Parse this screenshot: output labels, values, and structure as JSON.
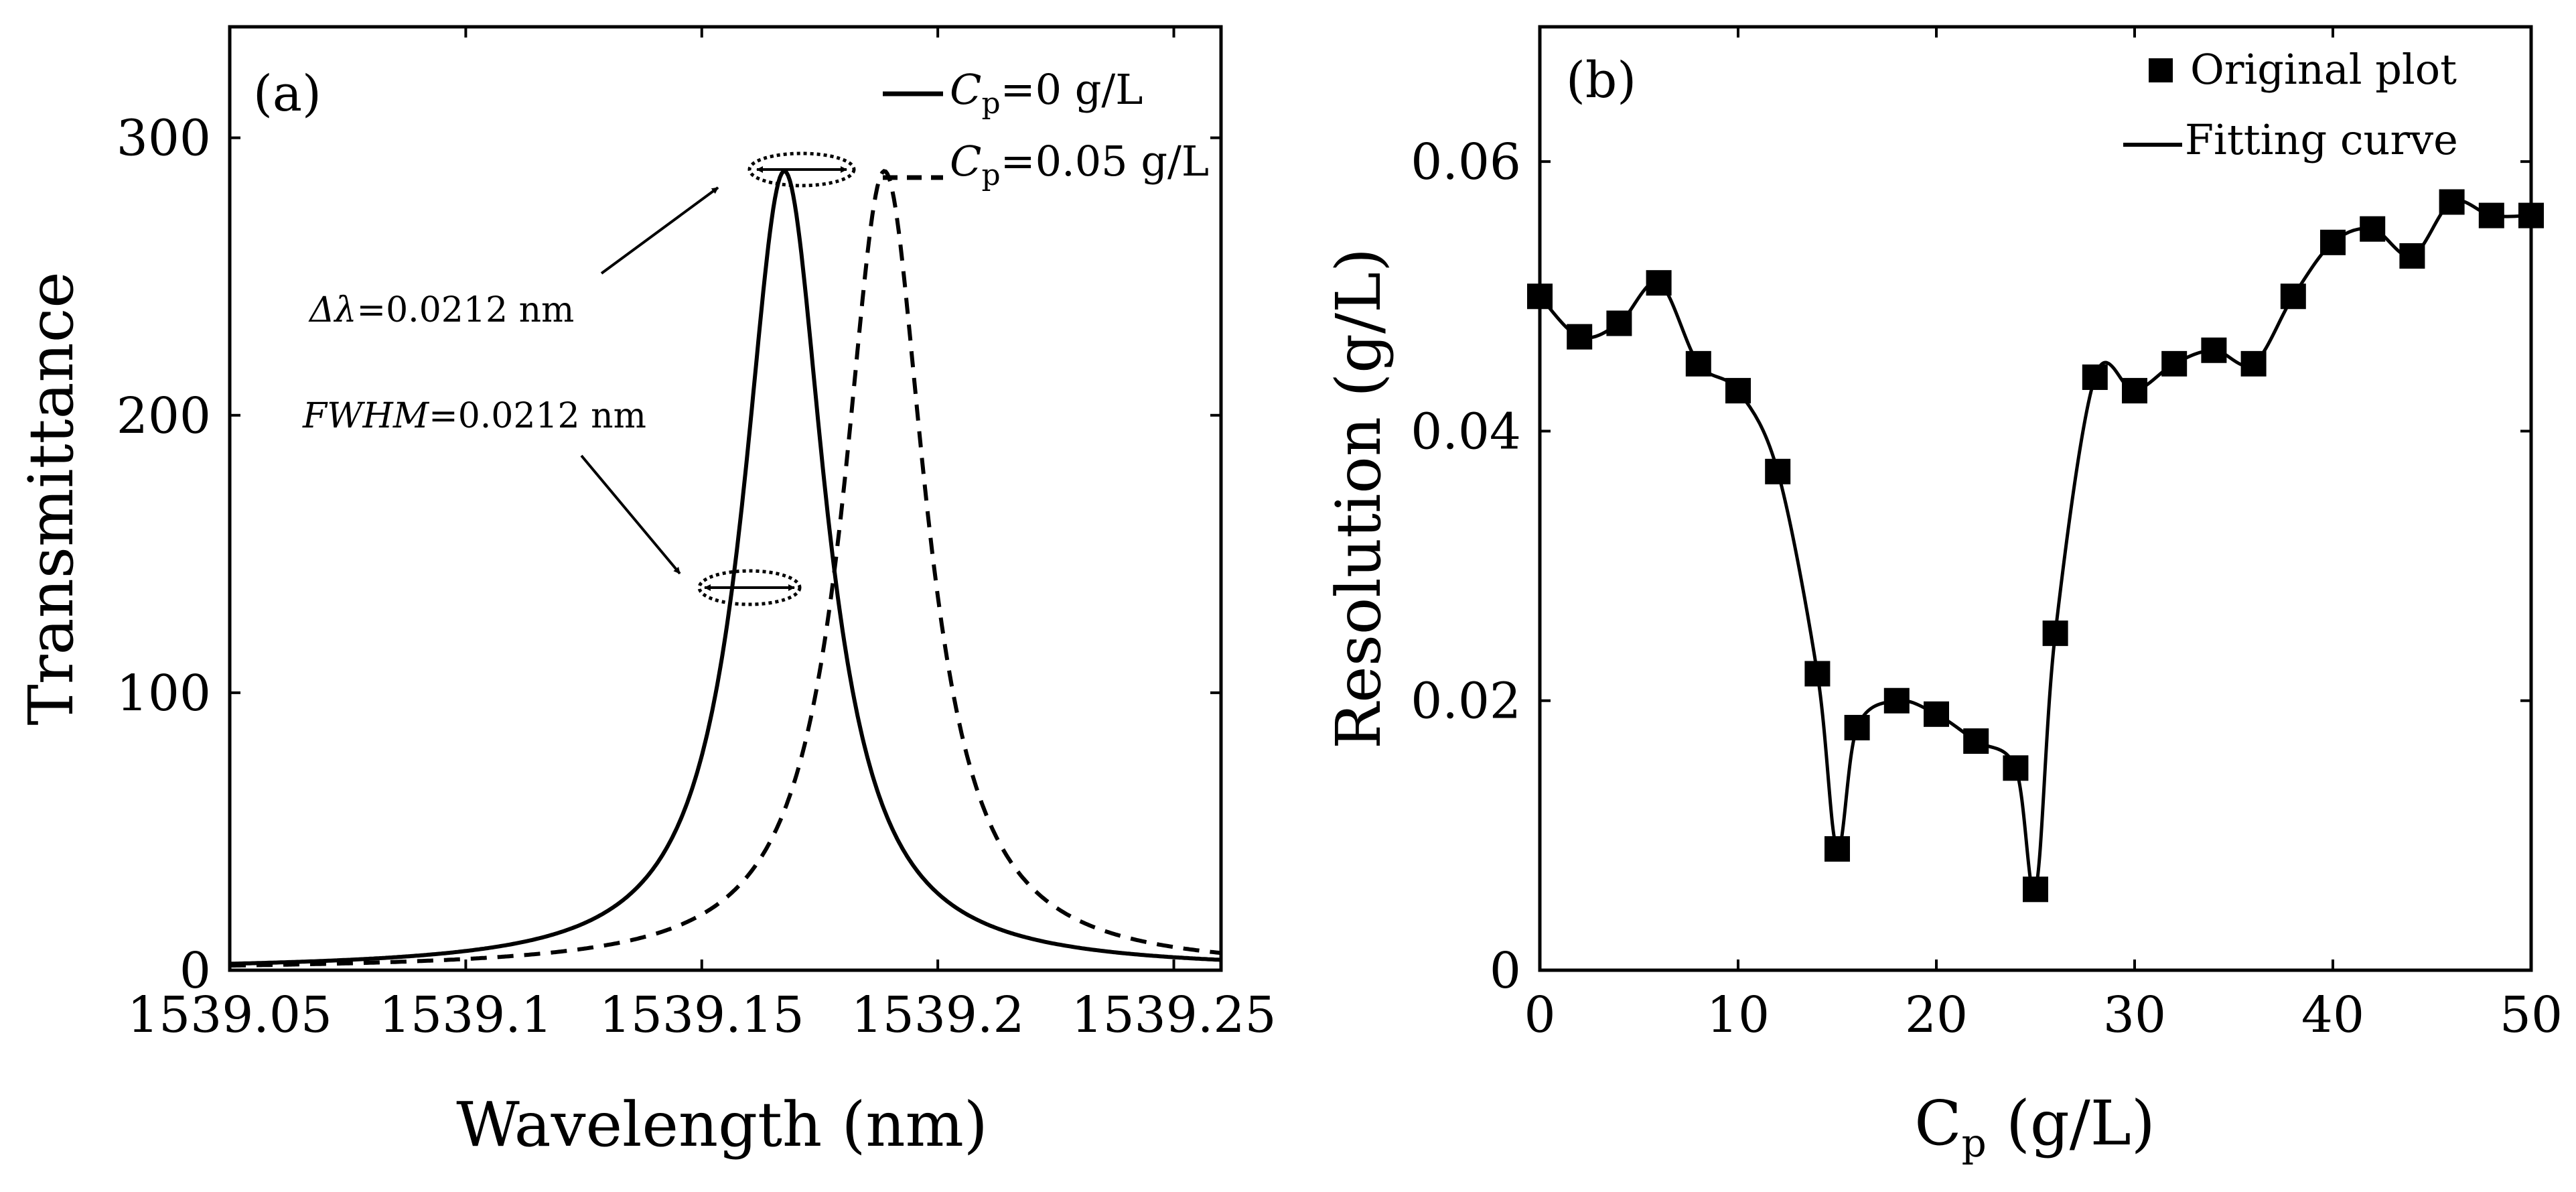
{
  "chart_data": [
    {
      "type": "line",
      "panel_label": "(a)",
      "xlabel": "Wavelength (nm)",
      "ylabel": "Transmittance",
      "xlim": [
        1539.05,
        1539.26
      ],
      "ylim": [
        0,
        340
      ],
      "xticks": [
        "1539.05",
        "1539.1",
        "1539.15",
        "1539.2",
        "1539.25"
      ],
      "yticks": [
        "0",
        "100",
        "200",
        "300"
      ],
      "series": [
        {
          "name": "C_p=0 g/L",
          "style": "solid",
          "peak_x": 1539.1675,
          "peak_y": 288,
          "fwhm_nm": 0.0212
        },
        {
          "name": "C_p=0.05 g/L",
          "style": "dashed",
          "peak_x": 1539.1887,
          "peak_y": 288,
          "fwhm_nm": 0.0212
        }
      ],
      "legend": [
        {
          "sym": "C",
          "sub": "p",
          "rest": "=0 g/L",
          "style": "solid"
        },
        {
          "sym": "C",
          "sub": "p",
          "rest": "=0.05 g/L",
          "style": "dashed"
        }
      ],
      "legend_position": "top-right",
      "annotations": {
        "shift": {
          "symbol": "Δλ",
          "value": "=0.0212 nm"
        },
        "fwhm": {
          "symbol": "FWHM",
          "value": "=0.0212 nm"
        }
      }
    },
    {
      "type": "line",
      "panel_label": "(b)",
      "xlabel_symbol": "C",
      "xlabel_sub": "p",
      "xlabel_rest": " (g/L)",
      "ylabel": "Resolution (g/L)",
      "xlim": [
        0,
        50
      ],
      "ylim": [
        0,
        0.07
      ],
      "xticks": [
        "0",
        "10",
        "20",
        "30",
        "40",
        "50"
      ],
      "yticks": [
        "0",
        "0.02",
        "0.04",
        "0.06"
      ],
      "series": [
        {
          "name": "Original plot",
          "marker": "square",
          "x": [
            0,
            2,
            4,
            6,
            8,
            10,
            12,
            14,
            15,
            16,
            18,
            20,
            22,
            24,
            25,
            26,
            28,
            30,
            32,
            34,
            36,
            38,
            40,
            42,
            44,
            46,
            48,
            50
          ],
          "y": [
            0.05,
            0.047,
            0.048,
            0.051,
            0.045,
            0.043,
            0.037,
            0.022,
            0.009,
            0.018,
            0.02,
            0.019,
            0.017,
            0.015,
            0.006,
            0.025,
            0.044,
            0.043,
            0.045,
            0.046,
            0.045,
            0.05,
            0.054,
            0.055,
            0.053,
            0.057,
            0.056,
            0.056
          ]
        },
        {
          "name": "Fitting curve",
          "style": "solid"
        }
      ],
      "legend": [
        "Original plot",
        "Fitting curve"
      ],
      "legend_position": "top-right"
    }
  ]
}
